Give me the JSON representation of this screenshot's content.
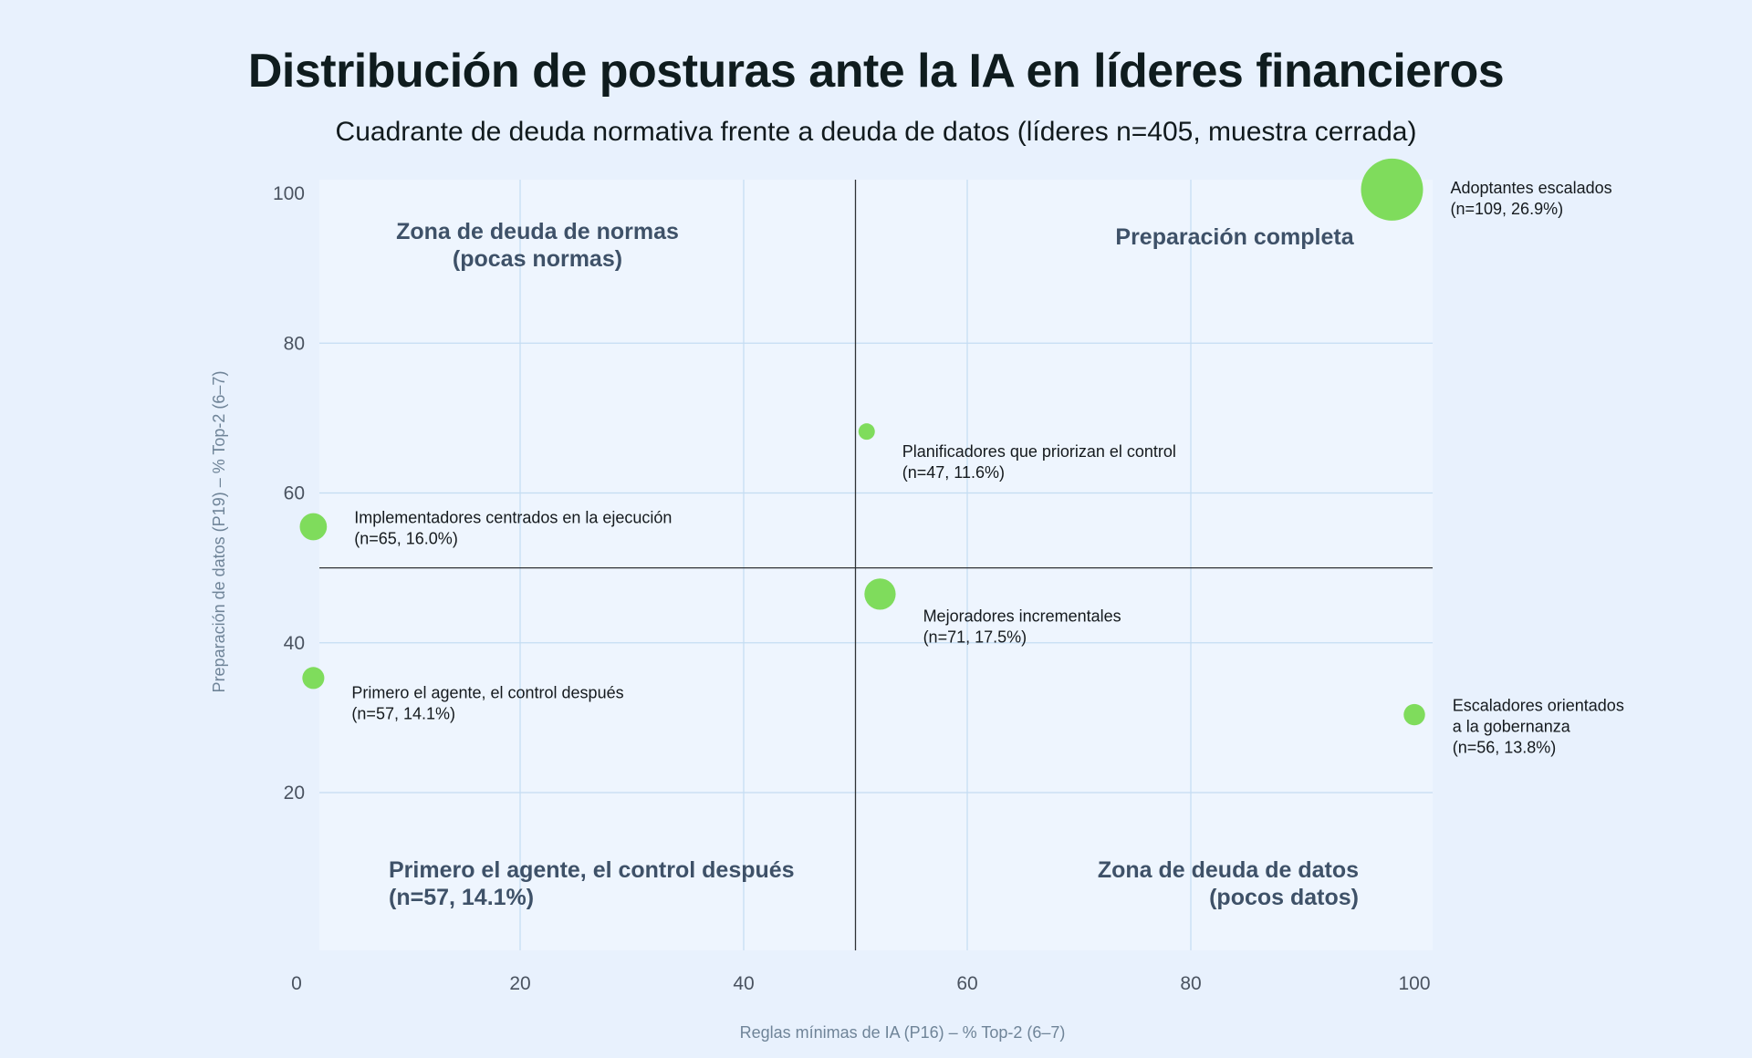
{
  "header": {
    "title": "Distribución de posturas ante la IA en líderes financieros",
    "subtitle": "Cuadrante de deuda normativa frente a deuda de datos (líderes n=405, muestra cerrada)"
  },
  "chart_data": {
    "type": "scatter",
    "title": "Distribución de posturas ante la IA en líderes financieros",
    "subtitle": "Cuadrante de deuda normativa frente a deuda de datos (líderes n=405, muestra cerrada)",
    "xlabel": "Reglas mínimas de IA (P16) – % Top-2 (6–7)",
    "ylabel": "Preparación de datos (P19) – % Top-2 (6–7)",
    "xlim": [
      0,
      100
    ],
    "ylim": [
      0,
      100
    ],
    "x_ticks": [
      0,
      20,
      40,
      60,
      80,
      100
    ],
    "y_ticks": [
      20,
      40,
      60,
      80,
      100
    ],
    "grid": true,
    "quadrant_divider": {
      "x": 50,
      "y": 50
    },
    "point_color": "#7fdc5c",
    "plot_background": "#eef5fe",
    "points": [
      {
        "name": "Adoptantes escalados",
        "detail": "(n=109, 26.9%)",
        "x": 98.0,
        "y": 100.5,
        "n": 109
      },
      {
        "name": "Planificadores que priorizan el control",
        "detail": "(n=47, 11.6%)",
        "x": 51.0,
        "y": 68.2,
        "n": 47
      },
      {
        "name": "Implementadores centrados en la ejecución",
        "detail": "(n=65, 16.0%)",
        "x": 1.5,
        "y": 55.5,
        "n": 65
      },
      {
        "name": "Mejoradores incrementales",
        "detail": "(n=71, 17.5%)",
        "x": 52.2,
        "y": 46.5,
        "n": 71
      },
      {
        "name": "Primero el agente, el control después",
        "detail": "(n=57, 14.1%)",
        "x": 1.5,
        "y": 35.3,
        "n": 57
      },
      {
        "name": "Escaladores orientados\na la gobernanza",
        "detail": "(n=56, 13.8%)",
        "x": 100.0,
        "y": 30.4,
        "n": 56
      }
    ],
    "quadrant_labels": [
      {
        "text": "Zona de deuda de normas\n(pocas normas)",
        "position": "top-left"
      },
      {
        "text": "Preparación completa",
        "position": "top-right"
      },
      {
        "text": "Primero el agente, el control después\n(n=57, 14.1%)",
        "position": "bottom-left"
      },
      {
        "text": "Zona de deuda de datos\n(pocos datos)",
        "position": "bottom-right"
      }
    ]
  }
}
